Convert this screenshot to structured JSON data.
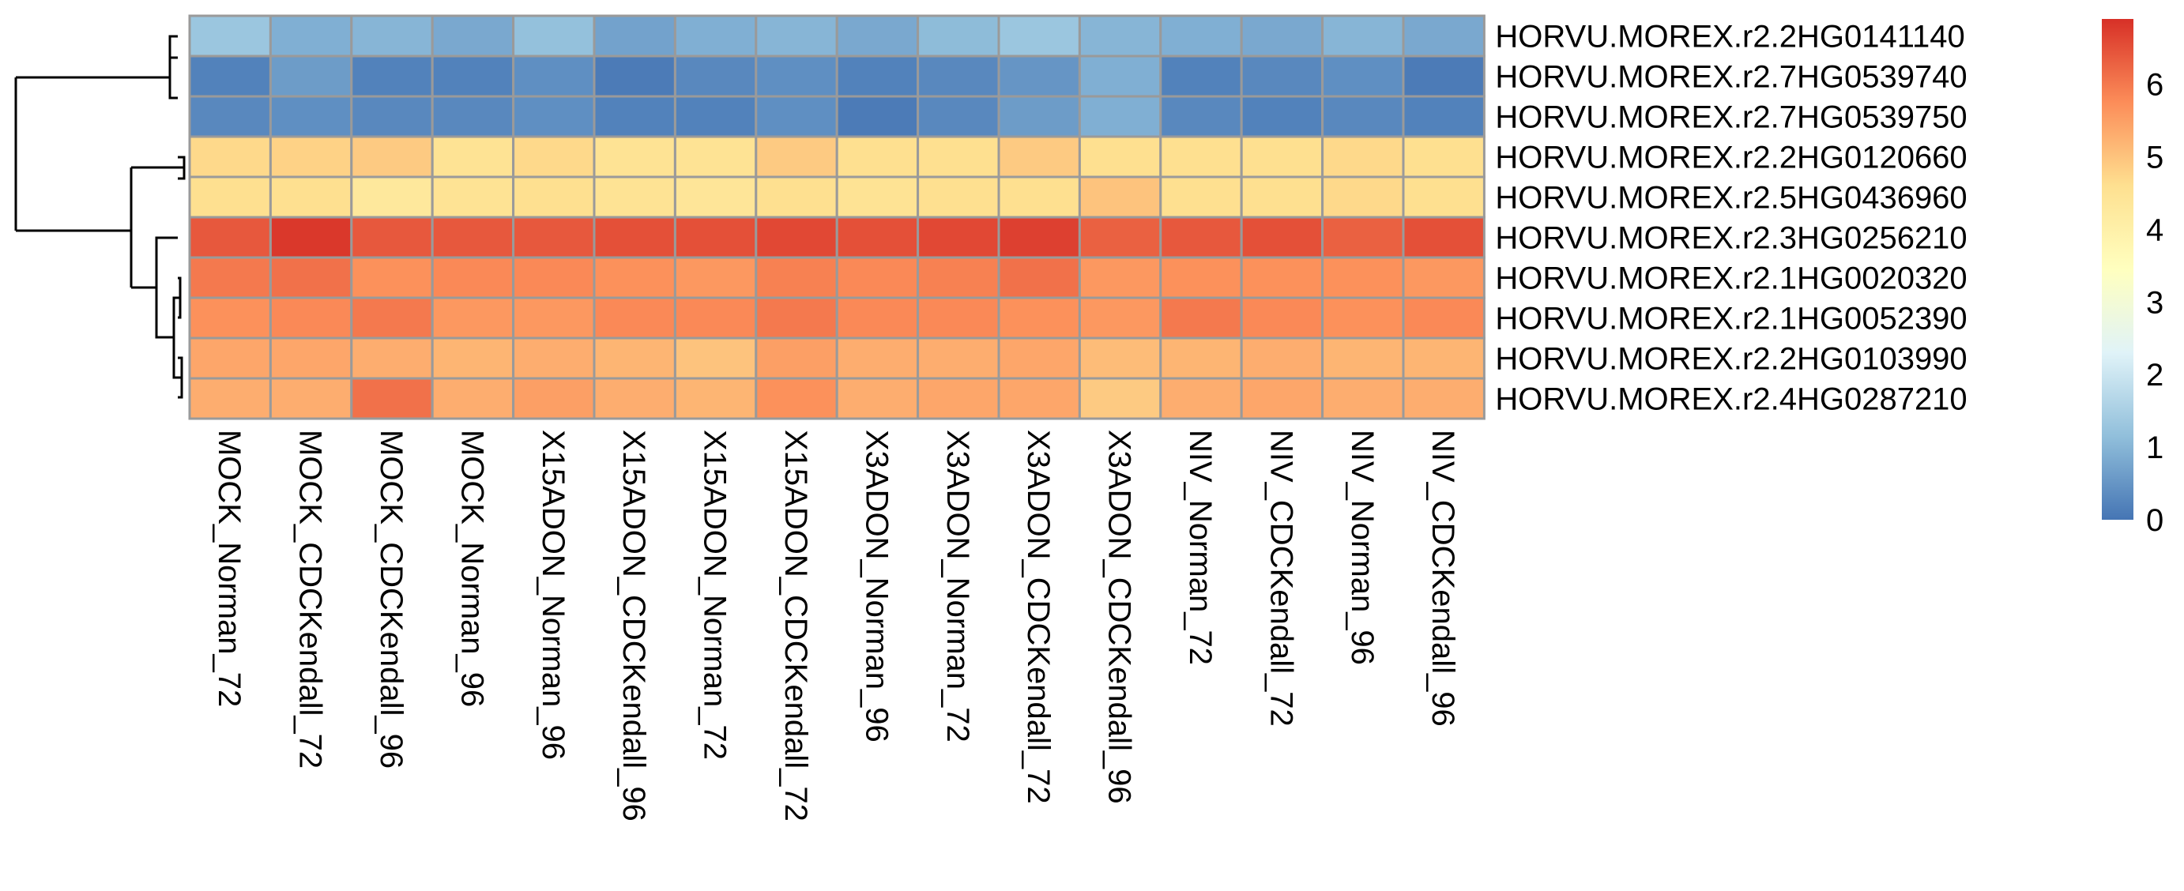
{
  "chart_data": {
    "type": "heatmap",
    "title": "",
    "xlabel": "",
    "ylabel": "",
    "rows": [
      "HORVU.MOREX.r2.2HG0141140",
      "HORVU.MOREX.r2.7HG0539740",
      "HORVU.MOREX.r2.7HG0539750",
      "HORVU.MOREX.r2.2HG0120660",
      "HORVU.MOREX.r2.5HG0436960",
      "HORVU.MOREX.r2.3HG0256210",
      "HORVU.MOREX.r2.1HG0020320",
      "HORVU.MOREX.r2.1HG0052390",
      "HORVU.MOREX.r2.2HG0103990",
      "HORVU.MOREX.r2.4HG0287210"
    ],
    "columns": [
      "MOCK_Norman_72",
      "MOCK_CDCKendall_72",
      "MOCK_CDCKendall_96",
      "MOCK_Norman_96",
      "X15ADON_Norman_96",
      "X15ADON_CDCKendall_96",
      "X15ADON_Norman_72",
      "X15ADON_CDCKendall_72",
      "X3ADON_Norman_96",
      "X3ADON_Norman_72",
      "X3ADON_CDCKendall_72",
      "X3ADON_CDCKendall_96",
      "NIV_Norman_72",
      "NIV_CDCKendall_72",
      "NIV_Norman_96",
      "NIV_CDCKendall_96"
    ],
    "values": [
      [
        1.3,
        0.9,
        1.0,
        0.8,
        1.2,
        0.7,
        0.9,
        1.0,
        0.8,
        1.1,
        1.3,
        1.0,
        0.9,
        0.8,
        1.0,
        0.8
      ],
      [
        0.2,
        0.6,
        0.2,
        0.2,
        0.4,
        0.1,
        0.3,
        0.4,
        0.2,
        0.3,
        0.5,
        0.9,
        0.2,
        0.3,
        0.4,
        0.1
      ],
      [
        0.3,
        0.4,
        0.3,
        0.3,
        0.4,
        0.2,
        0.2,
        0.4,
        0.1,
        0.3,
        0.6,
        0.9,
        0.3,
        0.2,
        0.3,
        0.2
      ],
      [
        4.7,
        4.8,
        4.9,
        4.5,
        4.7,
        4.5,
        4.5,
        4.9,
        4.6,
        4.6,
        4.9,
        4.6,
        4.6,
        4.6,
        4.7,
        4.6
      ],
      [
        4.6,
        4.6,
        4.3,
        4.5,
        4.6,
        4.5,
        4.4,
        4.6,
        4.5,
        4.6,
        4.6,
        5.0,
        4.6,
        4.6,
        4.7,
        4.6
      ],
      [
        6.4,
        6.8,
        6.4,
        6.4,
        6.4,
        6.5,
        6.5,
        6.6,
        6.5,
        6.6,
        6.7,
        6.3,
        6.4,
        6.5,
        6.3,
        6.5
      ],
      [
        6.0,
        6.1,
        5.7,
        5.8,
        5.8,
        5.7,
        5.6,
        5.9,
        5.8,
        5.9,
        6.1,
        5.6,
        5.7,
        5.7,
        5.7,
        5.6
      ],
      [
        5.7,
        5.8,
        6.0,
        5.6,
        5.6,
        5.8,
        5.8,
        6.0,
        5.8,
        5.8,
        5.7,
        5.6,
        6.0,
        5.8,
        5.7,
        5.8
      ],
      [
        5.4,
        5.4,
        5.3,
        5.2,
        5.3,
        5.2,
        5.0,
        5.5,
        5.3,
        5.3,
        5.4,
        5.1,
        5.2,
        5.3,
        5.2,
        5.2
      ],
      [
        5.3,
        5.3,
        6.1,
        5.3,
        5.5,
        5.3,
        5.2,
        5.7,
        5.3,
        5.4,
        5.4,
        4.9,
        5.3,
        5.4,
        5.3,
        5.3
      ]
    ],
    "colorscale": {
      "min": 0,
      "max": 6.9,
      "stops": [
        "#4575B4",
        "#91BFDB",
        "#E0F3F8",
        "#FFFFBF",
        "#FEE090",
        "#FC8D59",
        "#D73027"
      ],
      "ticks": [
        "0",
        "1",
        "2",
        "3",
        "4",
        "5",
        "6"
      ]
    },
    "row_dendrogram": true,
    "legend_placement": "right"
  }
}
